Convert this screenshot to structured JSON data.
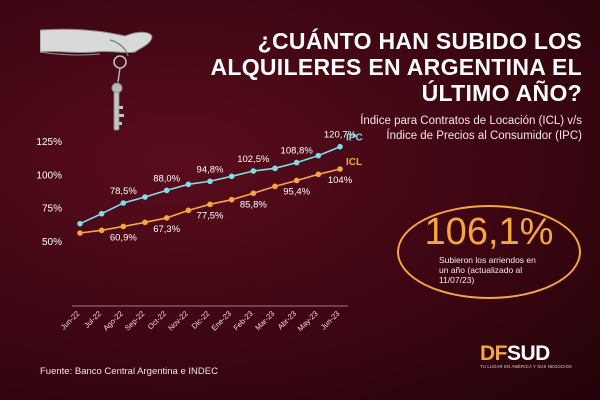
{
  "header": {
    "title": "¿Cuánto han subido los alquileres en Argentina el último año?",
    "subtitle": "Índice para Contratos de Locación (ICL) v/s  Índice de Precios al Consumidor (IPC)"
  },
  "kpi": {
    "value": "106,1%",
    "caption": "Subieron los arriendos en un año (actualizado al 11/07/23)"
  },
  "footer": {
    "source": "Fuente: Banco Central Argentina e INDEC"
  },
  "brand": {
    "df": "DF",
    "sud": "SUD",
    "tagline": "TU LUGAR EN AMÉRICA Y SUS NEGOCIOS"
  },
  "colors": {
    "ipc": "#7fdde8",
    "icl": "#f5a640",
    "accent": "#f5a640",
    "background": "#3c0612"
  },
  "chart_data": {
    "type": "line",
    "categories": [
      "Jun-22",
      "Jul-22",
      "Ago-22",
      "Sep-22",
      "Oct-22",
      "Nov-22",
      "Dic-22",
      "Ene-23",
      "Feb-23",
      "Mar-23",
      "Abr-23",
      "May-23",
      "Jun-23"
    ],
    "y_ticks": [
      "125%",
      "100%",
      "75%",
      "50%"
    ],
    "y_tick_values": [
      125,
      100,
      75,
      50
    ],
    "ylim": [
      50,
      125
    ],
    "grid": false,
    "series": [
      {
        "name": "IPC",
        "color": "#7fdde8",
        "values": [
          63,
          70.5,
          78.5,
          83,
          88,
          92.5,
          94.8,
          98.5,
          102.5,
          104.5,
          108.8,
          114,
          120.7
        ],
        "labels": [
          {
            "index": 2,
            "text": "78,5%"
          },
          {
            "index": 4,
            "text": "88,0%"
          },
          {
            "index": 6,
            "text": "94,8%"
          },
          {
            "index": 8,
            "text": "102,5%"
          },
          {
            "index": 10,
            "text": "108,8%"
          },
          {
            "index": 12,
            "text": "120,7%"
          }
        ]
      },
      {
        "name": "ICL",
        "color": "#f5a640",
        "values": [
          56,
          58,
          60.9,
          64,
          67.3,
          73,
          77.5,
          81,
          85.8,
          91,
          95.4,
          100,
          104
        ],
        "labels": [
          {
            "index": 2,
            "text": "60,9%"
          },
          {
            "index": 4,
            "text": "67,3%"
          },
          {
            "index": 6,
            "text": "77,5%"
          },
          {
            "index": 8,
            "text": "85,8%"
          },
          {
            "index": 10,
            "text": "95,4%"
          },
          {
            "index": 12,
            "text": "104%"
          }
        ]
      }
    ]
  }
}
